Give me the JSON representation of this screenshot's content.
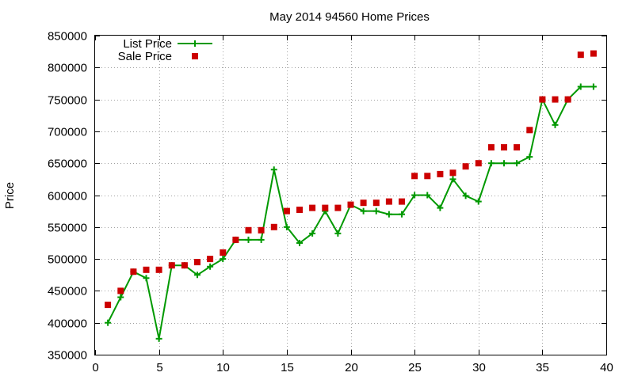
{
  "colors": {
    "list": "#009900",
    "sale": "#cc0000"
  },
  "chart_data": {
    "type": "scatter",
    "title": "May 2014 94560 Home Prices",
    "xlabel": "",
    "ylabel": "Price",
    "xlim": [
      0,
      40
    ],
    "ylim": [
      350000,
      850000
    ],
    "xticks": [
      0,
      5,
      10,
      15,
      20,
      25,
      30,
      35,
      40
    ],
    "yticks": [
      350000,
      400000,
      450000,
      500000,
      550000,
      600000,
      650000,
      700000,
      750000,
      800000,
      850000
    ],
    "grid": true,
    "legend_position": "top-left",
    "series": [
      {
        "name": "List Price",
        "style": "lines with plus markers",
        "x": [
          1,
          2,
          3,
          4,
          5,
          6,
          7,
          8,
          9,
          10,
          11,
          12,
          13,
          14,
          15,
          16,
          17,
          18,
          19,
          20,
          21,
          22,
          23,
          24,
          25,
          26,
          27,
          28,
          29,
          30,
          31,
          32,
          33,
          34,
          35,
          36,
          37,
          38,
          39
        ],
        "values": [
          400000,
          440000,
          480000,
          470000,
          375000,
          490000,
          490000,
          475000,
          488000,
          500000,
          530000,
          530000,
          530000,
          640000,
          550000,
          525000,
          540000,
          575000,
          540000,
          585000,
          575000,
          575000,
          570000,
          570000,
          600000,
          600000,
          580000,
          625000,
          599000,
          590000,
          650000,
          650000,
          650000,
          660000,
          750000,
          710000,
          750000,
          770000,
          770000
        ]
      },
      {
        "name": "Sale Price",
        "style": "square markers",
        "x": [
          1,
          2,
          3,
          4,
          5,
          6,
          7,
          8,
          9,
          10,
          11,
          12,
          13,
          14,
          15,
          16,
          17,
          18,
          19,
          20,
          21,
          22,
          23,
          24,
          25,
          26,
          27,
          28,
          29,
          30,
          31,
          32,
          33,
          34,
          35,
          36,
          37,
          38,
          39
        ],
        "values": [
          428000,
          450000,
          480000,
          483000,
          483000,
          490000,
          490000,
          495000,
          500000,
          510000,
          530000,
          545000,
          545000,
          550000,
          575000,
          577000,
          580000,
          580000,
          580000,
          585000,
          588000,
          588000,
          590000,
          590000,
          630000,
          630000,
          633000,
          635000,
          645000,
          650000,
          675000,
          675000,
          675000,
          702000,
          750000,
          750000,
          750000,
          820000,
          822000
        ]
      }
    ]
  }
}
